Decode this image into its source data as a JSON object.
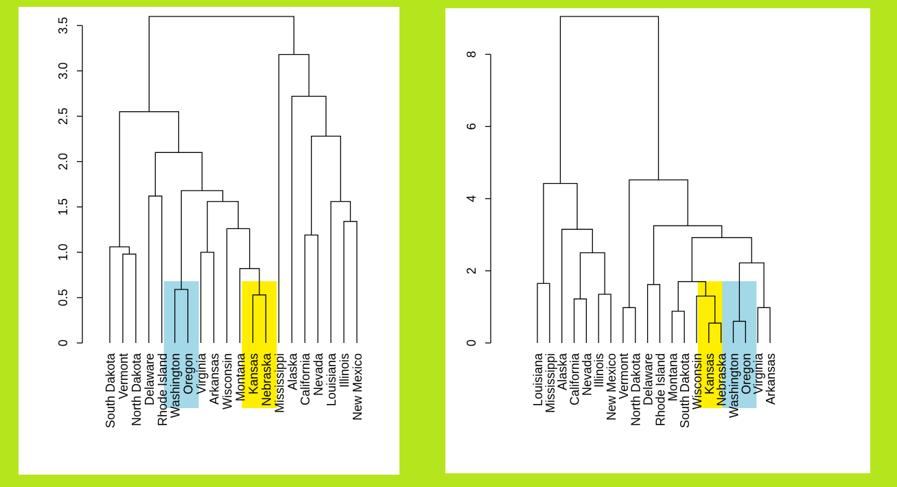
{
  "chart_data": [
    {
      "type": "dendrogram",
      "leaves": [
        "South Dakota",
        "Vermont",
        "North Dakota",
        "Delaware",
        "Rhode Island",
        "Washington",
        "Oregon",
        "Virginia",
        "Arkansas",
        "Wisconsin",
        "Montana",
        "Kansas",
        "Nebraska",
        "Mississippi",
        "Alaska",
        "California",
        "Nevada",
        "Louisiana",
        "Illinois",
        "New Mexico"
      ],
      "merge": [
        [
          -12,
          -13
        ],
        [
          -6,
          -7
        ],
        [
          -11,
          1
        ],
        [
          -2,
          -3
        ],
        [
          -8,
          -9
        ],
        [
          -1,
          4
        ],
        [
          -16,
          -17
        ],
        [
          -10,
          3
        ],
        [
          -19,
          -20
        ],
        [
          5,
          8
        ],
        [
          -18,
          9
        ],
        [
          -4,
          -5
        ],
        [
          2,
          10
        ],
        [
          12,
          13
        ],
        [
          7,
          11
        ],
        [
          6,
          14
        ],
        [
          -15,
          15
        ],
        [
          -14,
          17
        ],
        [
          16,
          18
        ]
      ],
      "heights": [
        0.53,
        0.59,
        0.82,
        0.98,
        1.0,
        1.06,
        1.19,
        1.26,
        1.34,
        1.56,
        1.56,
        1.62,
        1.68,
        2.1,
        2.28,
        2.55,
        2.72,
        3.18,
        3.6
      ],
      "ylim": [
        0,
        3.6
      ],
      "yticks": [
        0,
        {
          "value": 0.5,
          "label": "0.5"
        },
        {
          "value": 1,
          "label": "1.0"
        },
        {
          "value": 1.5,
          "label": "1.5"
        },
        {
          "value": 2,
          "label": "2.0"
        },
        {
          "value": 2.5,
          "label": "2.5"
        },
        {
          "value": 3,
          "label": "3.0"
        },
        {
          "value": 3.5,
          "label": "3.5"
        }
      ],
      "color": "#000000",
      "highlights": [
        {
          "leaves": [
            5,
            6
          ],
          "color": "#a3d8e8"
        },
        {
          "leaves": [
            11,
            12
          ],
          "color": "#ffee00"
        }
      ]
    },
    {
      "type": "dendrogram",
      "leaves": [
        "Louisiana",
        "Mississippi",
        "Alaska",
        "California",
        "Nevada",
        "Illinois",
        "New Mexico",
        "Vermont",
        "North Dakota",
        "Delaware",
        "Rhode Island",
        "Montana",
        "South Dakota",
        "Wisconsin",
        "Kansas",
        "Nebraska",
        "Washington",
        "Oregon",
        "Virginia",
        "Arkansas"
      ],
      "merge": [
        [
          -15,
          -16
        ],
        [
          -17,
          -18
        ],
        [
          -12,
          -13
        ],
        [
          -8,
          -9
        ],
        [
          -19,
          -20
        ],
        [
          -4,
          -5
        ],
        [
          -14,
          1
        ],
        [
          -6,
          -7
        ],
        [
          -10,
          -11
        ],
        [
          -1,
          -2
        ],
        [
          3,
          7
        ],
        [
          2,
          5
        ],
        [
          6,
          8
        ],
        [
          12,
          11
        ],
        [
          -3,
          13
        ],
        [
          9,
          14
        ],
        [
          10,
          15
        ],
        [
          4,
          16
        ],
        [
          17,
          18
        ]
      ],
      "heights": [
        0.55,
        0.6,
        0.88,
        0.98,
        0.98,
        1.22,
        1.3,
        1.35,
        1.62,
        1.65,
        1.7,
        2.22,
        2.5,
        2.92,
        3.15,
        3.25,
        4.42,
        4.52,
        9.05
      ],
      "ylim": [
        0,
        9.05
      ],
      "yticks": [
        0,
        2,
        4,
        6,
        8
      ],
      "color": "#000000",
      "highlights": [
        {
          "leaves": [
            14,
            15
          ],
          "color": "#ffee00"
        },
        {
          "leaves": [
            16,
            17
          ],
          "color": "#a3d8e8"
        }
      ]
    }
  ]
}
